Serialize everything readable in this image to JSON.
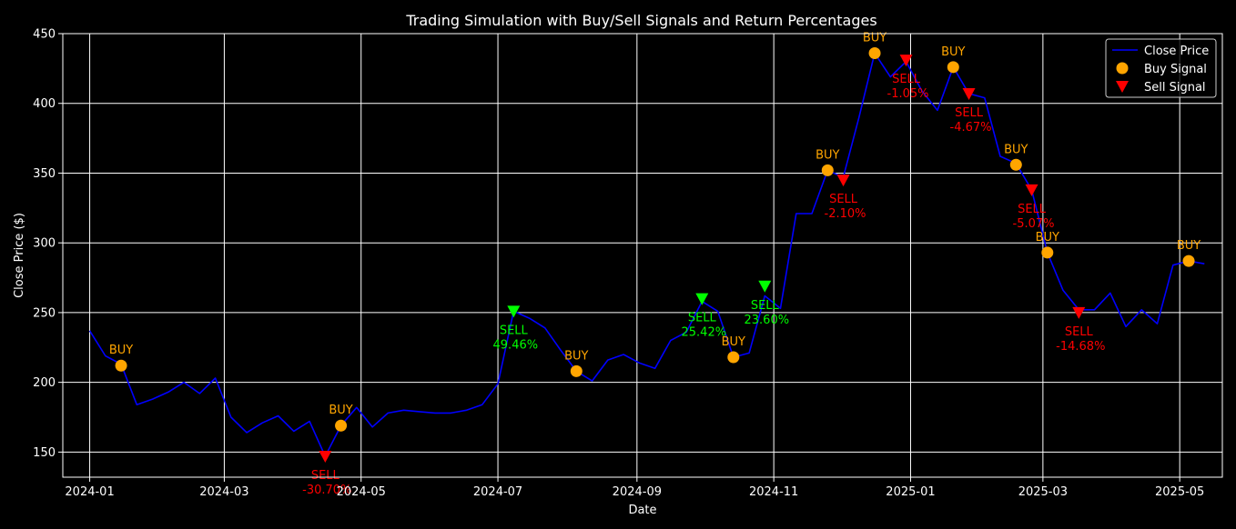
{
  "chart_data": {
    "type": "line",
    "title": "Trading Simulation with Buy/Sell Signals and Return Percentages",
    "xlabel": "Date",
    "ylabel": "Close Price ($)",
    "xlim": [
      "2023-12-20",
      "2025-05-20"
    ],
    "ylim": [
      132,
      450
    ],
    "x_ticks": [
      "2024-01",
      "2024-03",
      "2024-05",
      "2024-07",
      "2024-09",
      "2024-11",
      "2025-01",
      "2025-03",
      "2025-05"
    ],
    "y_ticks": [
      150,
      200,
      250,
      300,
      350,
      400,
      450
    ],
    "grid": true,
    "legend_position": "top-right",
    "colors": {
      "background": "#000000",
      "axes": "#ffffff",
      "grid": "#ffffff",
      "price_line": "#0000ff",
      "buy": "#ffa500",
      "sell_loss": "#ff0000",
      "sell_gain": "#00ff00"
    },
    "series": [
      {
        "name": "Close Price",
        "points": [
          [
            "2024-01-01",
            237
          ],
          [
            "2024-01-08",
            219
          ],
          [
            "2024-01-15",
            213
          ],
          [
            "2024-01-22",
            184
          ],
          [
            "2024-01-29",
            188
          ],
          [
            "2024-02-05",
            193
          ],
          [
            "2024-02-12",
            200
          ],
          [
            "2024-02-19",
            192
          ],
          [
            "2024-02-26",
            203
          ],
          [
            "2024-03-04",
            175
          ],
          [
            "2024-03-11",
            164
          ],
          [
            "2024-03-18",
            171
          ],
          [
            "2024-03-25",
            176
          ],
          [
            "2024-04-01",
            165
          ],
          [
            "2024-04-08",
            172
          ],
          [
            "2024-04-15",
            147
          ],
          [
            "2024-04-22",
            169
          ],
          [
            "2024-04-29",
            182
          ],
          [
            "2024-05-06",
            168
          ],
          [
            "2024-05-13",
            178
          ],
          [
            "2024-05-20",
            180
          ],
          [
            "2024-05-27",
            179
          ],
          [
            "2024-06-03",
            178
          ],
          [
            "2024-06-10",
            178
          ],
          [
            "2024-06-17",
            180
          ],
          [
            "2024-06-24",
            184
          ],
          [
            "2024-07-01",
            199
          ],
          [
            "2024-07-08",
            251
          ],
          [
            "2024-07-15",
            246
          ],
          [
            "2024-07-22",
            239
          ],
          [
            "2024-07-29",
            223
          ],
          [
            "2024-08-05",
            208
          ],
          [
            "2024-08-12",
            201
          ],
          [
            "2024-08-19",
            216
          ],
          [
            "2024-08-26",
            220
          ],
          [
            "2024-09-02",
            214
          ],
          [
            "2024-09-09",
            210
          ],
          [
            "2024-09-16",
            230
          ],
          [
            "2024-09-23",
            236
          ],
          [
            "2024-09-30",
            258
          ],
          [
            "2024-10-07",
            251
          ],
          [
            "2024-10-14",
            218
          ],
          [
            "2024-10-21",
            221
          ],
          [
            "2024-10-28",
            262
          ],
          [
            "2024-11-04",
            253
          ],
          [
            "2024-11-11",
            321
          ],
          [
            "2024-11-18",
            321
          ],
          [
            "2024-11-25",
            352
          ],
          [
            "2024-12-02",
            347
          ],
          [
            "2024-12-09",
            390
          ],
          [
            "2024-12-16",
            436
          ],
          [
            "2024-12-23",
            419
          ],
          [
            "2024-12-30",
            430
          ],
          [
            "2025-01-06",
            409
          ],
          [
            "2025-01-13",
            395
          ],
          [
            "2025-01-20",
            426
          ],
          [
            "2025-01-27",
            407
          ],
          [
            "2025-02-03",
            404
          ],
          [
            "2025-02-10",
            362
          ],
          [
            "2025-02-17",
            357
          ],
          [
            "2025-02-24",
            338
          ],
          [
            "2025-03-03",
            293
          ],
          [
            "2025-03-10",
            266
          ],
          [
            "2025-03-17",
            252
          ],
          [
            "2025-03-24",
            252
          ],
          [
            "2025-03-31",
            264
          ],
          [
            "2025-04-07",
            240
          ],
          [
            "2025-04-14",
            252
          ],
          [
            "2025-04-21",
            242
          ],
          [
            "2025-04-28",
            284
          ],
          [
            "2025-05-05",
            287
          ],
          [
            "2025-05-12",
            285
          ]
        ]
      },
      {
        "name": "Buy Signal",
        "points": [
          {
            "x": "2024-01-15",
            "y": 212,
            "label": "BUY"
          },
          {
            "x": "2024-04-22",
            "y": 169,
            "label": "BUY"
          },
          {
            "x": "2024-08-05",
            "y": 208,
            "label": "BUY"
          },
          {
            "x": "2024-10-14",
            "y": 218,
            "label": "BUY"
          },
          {
            "x": "2024-11-25",
            "y": 352,
            "label": "BUY"
          },
          {
            "x": "2024-12-16",
            "y": 436,
            "label": "BUY"
          },
          {
            "x": "2025-01-20",
            "y": 426,
            "label": "BUY"
          },
          {
            "x": "2025-02-17",
            "y": 356,
            "label": "BUY"
          },
          {
            "x": "2025-03-03",
            "y": 293,
            "label": "BUY"
          },
          {
            "x": "2025-05-05",
            "y": 287,
            "label": "BUY"
          }
        ]
      },
      {
        "name": "Sell Signal",
        "points": [
          {
            "x": "2024-04-15",
            "y": 147,
            "label": "SELL",
            "return": "-30.70%",
            "gain": false
          },
          {
            "x": "2024-07-08",
            "y": 251,
            "label": "SELL",
            "return": "49.46%",
            "gain": true
          },
          {
            "x": "2024-09-30",
            "y": 260,
            "label": "SELL",
            "return": "25.42%",
            "gain": true
          },
          {
            "x": "2024-10-28",
            "y": 269,
            "label": "SELL",
            "return": "23.60%",
            "gain": true
          },
          {
            "x": "2024-12-02",
            "y": 345,
            "label": "SELL",
            "return": "-2.10%",
            "gain": false
          },
          {
            "x": "2024-12-30",
            "y": 431,
            "label": "SELL",
            "return": "-1.05%",
            "gain": false
          },
          {
            "x": "2025-01-27",
            "y": 407,
            "label": "SELL",
            "return": "-4.67%",
            "gain": false
          },
          {
            "x": "2025-02-24",
            "y": 338,
            "label": "SELL",
            "return": "-5.07%",
            "gain": false
          },
          {
            "x": "2025-03-17",
            "y": 250,
            "label": "SELL",
            "return": "-14.68%",
            "gain": false
          }
        ]
      }
    ],
    "legend": [
      "Close Price",
      "Buy Signal",
      "Sell Signal"
    ]
  }
}
